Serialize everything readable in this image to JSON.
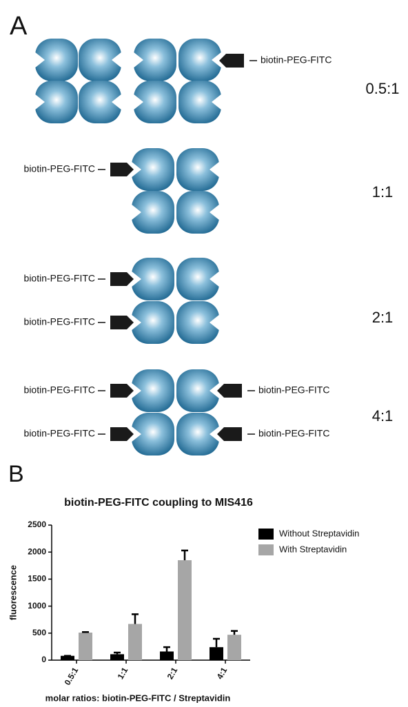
{
  "panel_a": {
    "label": "A",
    "groups": [
      {
        "ratio": "0.5:1",
        "labels": [
          "biotin-PEG-FITC"
        ]
      },
      {
        "ratio": "1:1",
        "labels": [
          "biotin-PEG-FITC"
        ]
      },
      {
        "ratio": "2:1",
        "labels": [
          "biotin-PEG-FITC",
          "biotin-PEG-FITC"
        ]
      },
      {
        "ratio": "4:1",
        "labels": [
          "biotin-PEG-FITC",
          "biotin-PEG-FITC",
          "biotin-PEG-FITC",
          "biotin-PEG-FITC"
        ]
      }
    ]
  },
  "panel_b": {
    "label": "B"
  },
  "chart_data": {
    "type": "bar",
    "title": "biotin-PEG-FITC coupling to MIS416",
    "y_label": "fluorescence",
    "x_label": "molar ratios: biotin-PEG-FITC / Streptavidin",
    "categories": [
      "0.5:1",
      "1:1",
      "2:1",
      "4:1"
    ],
    "series": [
      {
        "name": "Without Streptavidin",
        "color": "#000000",
        "values": [
          80,
          110,
          160,
          240
        ],
        "errors": [
          0,
          30,
          80,
          155
        ]
      },
      {
        "name": "With Streptavidin",
        "color": "#a6a6a6",
        "values": [
          510,
          670,
          1850,
          470
        ],
        "errors": [
          10,
          180,
          180,
          70
        ]
      }
    ],
    "ylim": [
      0,
      2500
    ],
    "yticks": [
      0,
      500,
      1000,
      1500,
      2000,
      2500
    ],
    "grid": false
  }
}
